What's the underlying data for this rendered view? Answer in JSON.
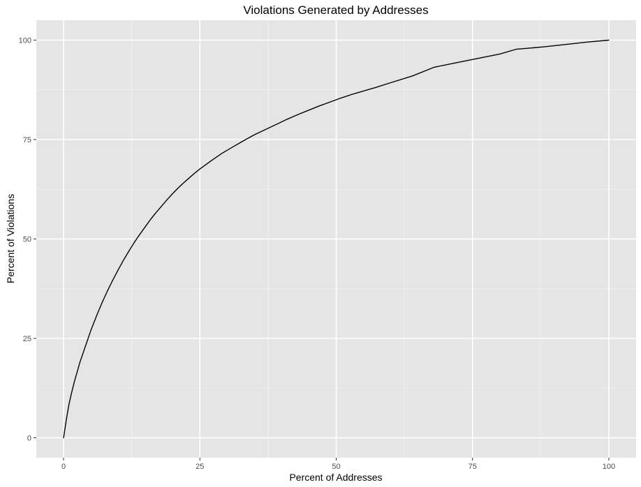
{
  "chart_data": {
    "type": "line",
    "title": "Violations Generated by Addresses",
    "xlabel": "Percent of  Addresses",
    "ylabel": "Percent of Violations",
    "xlim": [
      -5,
      105
    ],
    "ylim": [
      -5,
      105
    ],
    "x_ticks": [
      0,
      25,
      50,
      75,
      100
    ],
    "x_tick_labels": [
      "0",
      "25",
      "50",
      "75",
      "100"
    ],
    "y_ticks": [
      0,
      25,
      50,
      75,
      100
    ],
    "y_tick_labels": [
      "0",
      "25",
      "50",
      "75",
      "100"
    ],
    "grid": true,
    "legend": "none",
    "colors": {
      "panel_background": "#e5e5e5",
      "grid_major": "#ffffff",
      "grid_minor": "#f2f2f2",
      "line": "#000000",
      "tick_label": "#4d4d4d",
      "tick_mark": "#333333"
    },
    "series": [
      {
        "x": [
          0,
          0.5,
          1,
          1.5,
          2,
          3,
          4,
          5,
          6,
          7,
          8,
          9,
          10,
          11,
          12,
          13,
          14,
          15,
          16,
          17,
          18,
          19,
          20,
          21,
          22,
          23,
          24,
          25,
          27,
          29,
          31,
          33,
          35,
          37,
          39,
          41,
          43,
          45,
          47,
          49,
          51,
          53,
          55,
          57,
          60,
          64,
          68,
          72,
          76,
          80,
          83,
          88,
          92,
          96,
          100
        ],
        "y": [
          0,
          4.5,
          8.5,
          11.5,
          14.2,
          19,
          23,
          27,
          30.5,
          33.8,
          36.8,
          39.6,
          42.2,
          44.7,
          47,
          49.2,
          51.2,
          53.1,
          55,
          56.7,
          58.3,
          59.9,
          61.4,
          62.8,
          64.1,
          65.3,
          66.5,
          67.6,
          69.6,
          71.5,
          73.1,
          74.7,
          76.2,
          77.5,
          78.8,
          80.1,
          81.3,
          82.4,
          83.5,
          84.5,
          85.5,
          86.4,
          87.2,
          88,
          89.3,
          91,
          93.2,
          94.3,
          95.4,
          96.5,
          97.7,
          98.3,
          98.9,
          99.5,
          100
        ]
      }
    ]
  }
}
